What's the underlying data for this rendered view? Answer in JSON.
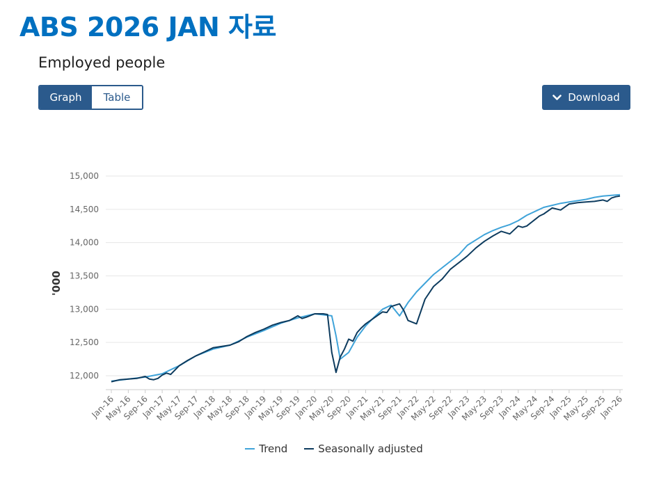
{
  "slide": {
    "title": "ABS 2026 JAN 자료"
  },
  "widget": {
    "heading": "Employed people",
    "view_toggle": {
      "graph_label": "Graph",
      "table_label": "Table",
      "selected": "Graph"
    },
    "download_label": "Download"
  },
  "colors": {
    "trend": "#3fa3d9",
    "seasonal": "#0d3b5e",
    "button": "#2b5a8c",
    "title": "#0070c0"
  },
  "chart_data": {
    "type": "line",
    "title": "Employed people",
    "ylabel": "'000",
    "xlabel": "",
    "ylim": [
      11800,
      15000
    ],
    "yticks": [
      12000,
      12500,
      13000,
      13500,
      14000,
      14500,
      15000
    ],
    "ytick_labels": [
      "12,000",
      "12,500",
      "13,000",
      "13,500",
      "14,000",
      "14,500",
      "15,000"
    ],
    "xtick_labels": [
      "Jan-16",
      "May-16",
      "Sep-16",
      "Jan-17",
      "May-17",
      "Sep-17",
      "Jan-18",
      "May-18",
      "Sep-18",
      "Jan-19",
      "May-19",
      "Sep-19",
      "Jan-20",
      "May-20",
      "Sep-20",
      "Jan-21",
      "May-21",
      "Sep-21",
      "Jan-22",
      "May-22",
      "Sep-22",
      "Jan-23",
      "May-23",
      "Sep-23",
      "Jan-24",
      "May-24",
      "Sep-24",
      "Jan-25",
      "May-25",
      "Sep-25",
      "Jan-26"
    ],
    "x_months_from_jan16": [
      0,
      4,
      8,
      12,
      16,
      20,
      24,
      28,
      32,
      36,
      40,
      44,
      48,
      53,
      56,
      57,
      58,
      62,
      66,
      67,
      70,
      71,
      72,
      73,
      74,
      75,
      76,
      78,
      80,
      81,
      82,
      84,
      86,
      88,
      90,
      91,
      92,
      93,
      96,
      100,
      104,
      108,
      112,
      116,
      120
    ],
    "grid": "horizontal",
    "legend_position": "bottom-center",
    "series": [
      {
        "name": "Trend",
        "x_months": [
          0,
          4,
          8,
          12,
          16,
          20,
          24,
          28,
          32,
          36,
          40,
          44,
          48,
          52,
          53,
          54,
          56,
          58,
          60,
          62,
          64,
          66,
          68,
          70,
          72,
          74,
          76,
          78,
          80,
          82,
          84,
          86,
          88,
          90,
          92,
          94,
          96,
          98,
          100,
          102,
          104,
          106,
          108,
          110,
          112,
          114,
          116,
          118,
          120
        ],
        "values": [
          11920,
          11950,
          11980,
          12030,
          12150,
          12300,
          12400,
          12460,
          12580,
          12680,
          12790,
          12870,
          12930,
          12900,
          12600,
          12250,
          12350,
          12580,
          12750,
          12880,
          13000,
          13060,
          12900,
          13100,
          13260,
          13390,
          13520,
          13620,
          13720,
          13820,
          13960,
          14040,
          14120,
          14180,
          14230,
          14270,
          14330,
          14410,
          14470,
          14530,
          14560,
          14590,
          14610,
          14630,
          14650,
          14680,
          14700,
          14710,
          14720
        ]
      },
      {
        "name": "Seasonally adjusted",
        "x_months": [
          0,
          2,
          4,
          6,
          8,
          9,
          10,
          11,
          12,
          13,
          14,
          16,
          18,
          20,
          22,
          24,
          26,
          28,
          30,
          32,
          34,
          36,
          38,
          40,
          42,
          44,
          45,
          46,
          48,
          50,
          51,
          52,
          53,
          54,
          55,
          56,
          57,
          58,
          59,
          60,
          62,
          64,
          65,
          66,
          67,
          68,
          69,
          70,
          72,
          74,
          76,
          78,
          80,
          82,
          84,
          86,
          88,
          90,
          92,
          94,
          96,
          97,
          98,
          100,
          101,
          102,
          104,
          106,
          108,
          110,
          112,
          114,
          116,
          117,
          118,
          119,
          120
        ],
        "values": [
          11910,
          11940,
          11950,
          11960,
          11990,
          11950,
          11940,
          11960,
          12010,
          12040,
          12020,
          12150,
          12230,
          12300,
          12360,
          12420,
          12440,
          12460,
          12510,
          12590,
          12650,
          12700,
          12760,
          12800,
          12830,
          12900,
          12860,
          12880,
          12930,
          12930,
          12920,
          12350,
          12050,
          12280,
          12400,
          12550,
          12520,
          12650,
          12720,
          12780,
          12870,
          12960,
          12950,
          13040,
          13060,
          13080,
          12980,
          12830,
          12780,
          13150,
          13340,
          13450,
          13600,
          13700,
          13800,
          13920,
          14020,
          14100,
          14170,
          14130,
          14250,
          14230,
          14250,
          14350,
          14400,
          14430,
          14520,
          14490,
          14580,
          14600,
          14610,
          14620,
          14640,
          14620,
          14670,
          14690,
          14700
        ]
      }
    ]
  }
}
